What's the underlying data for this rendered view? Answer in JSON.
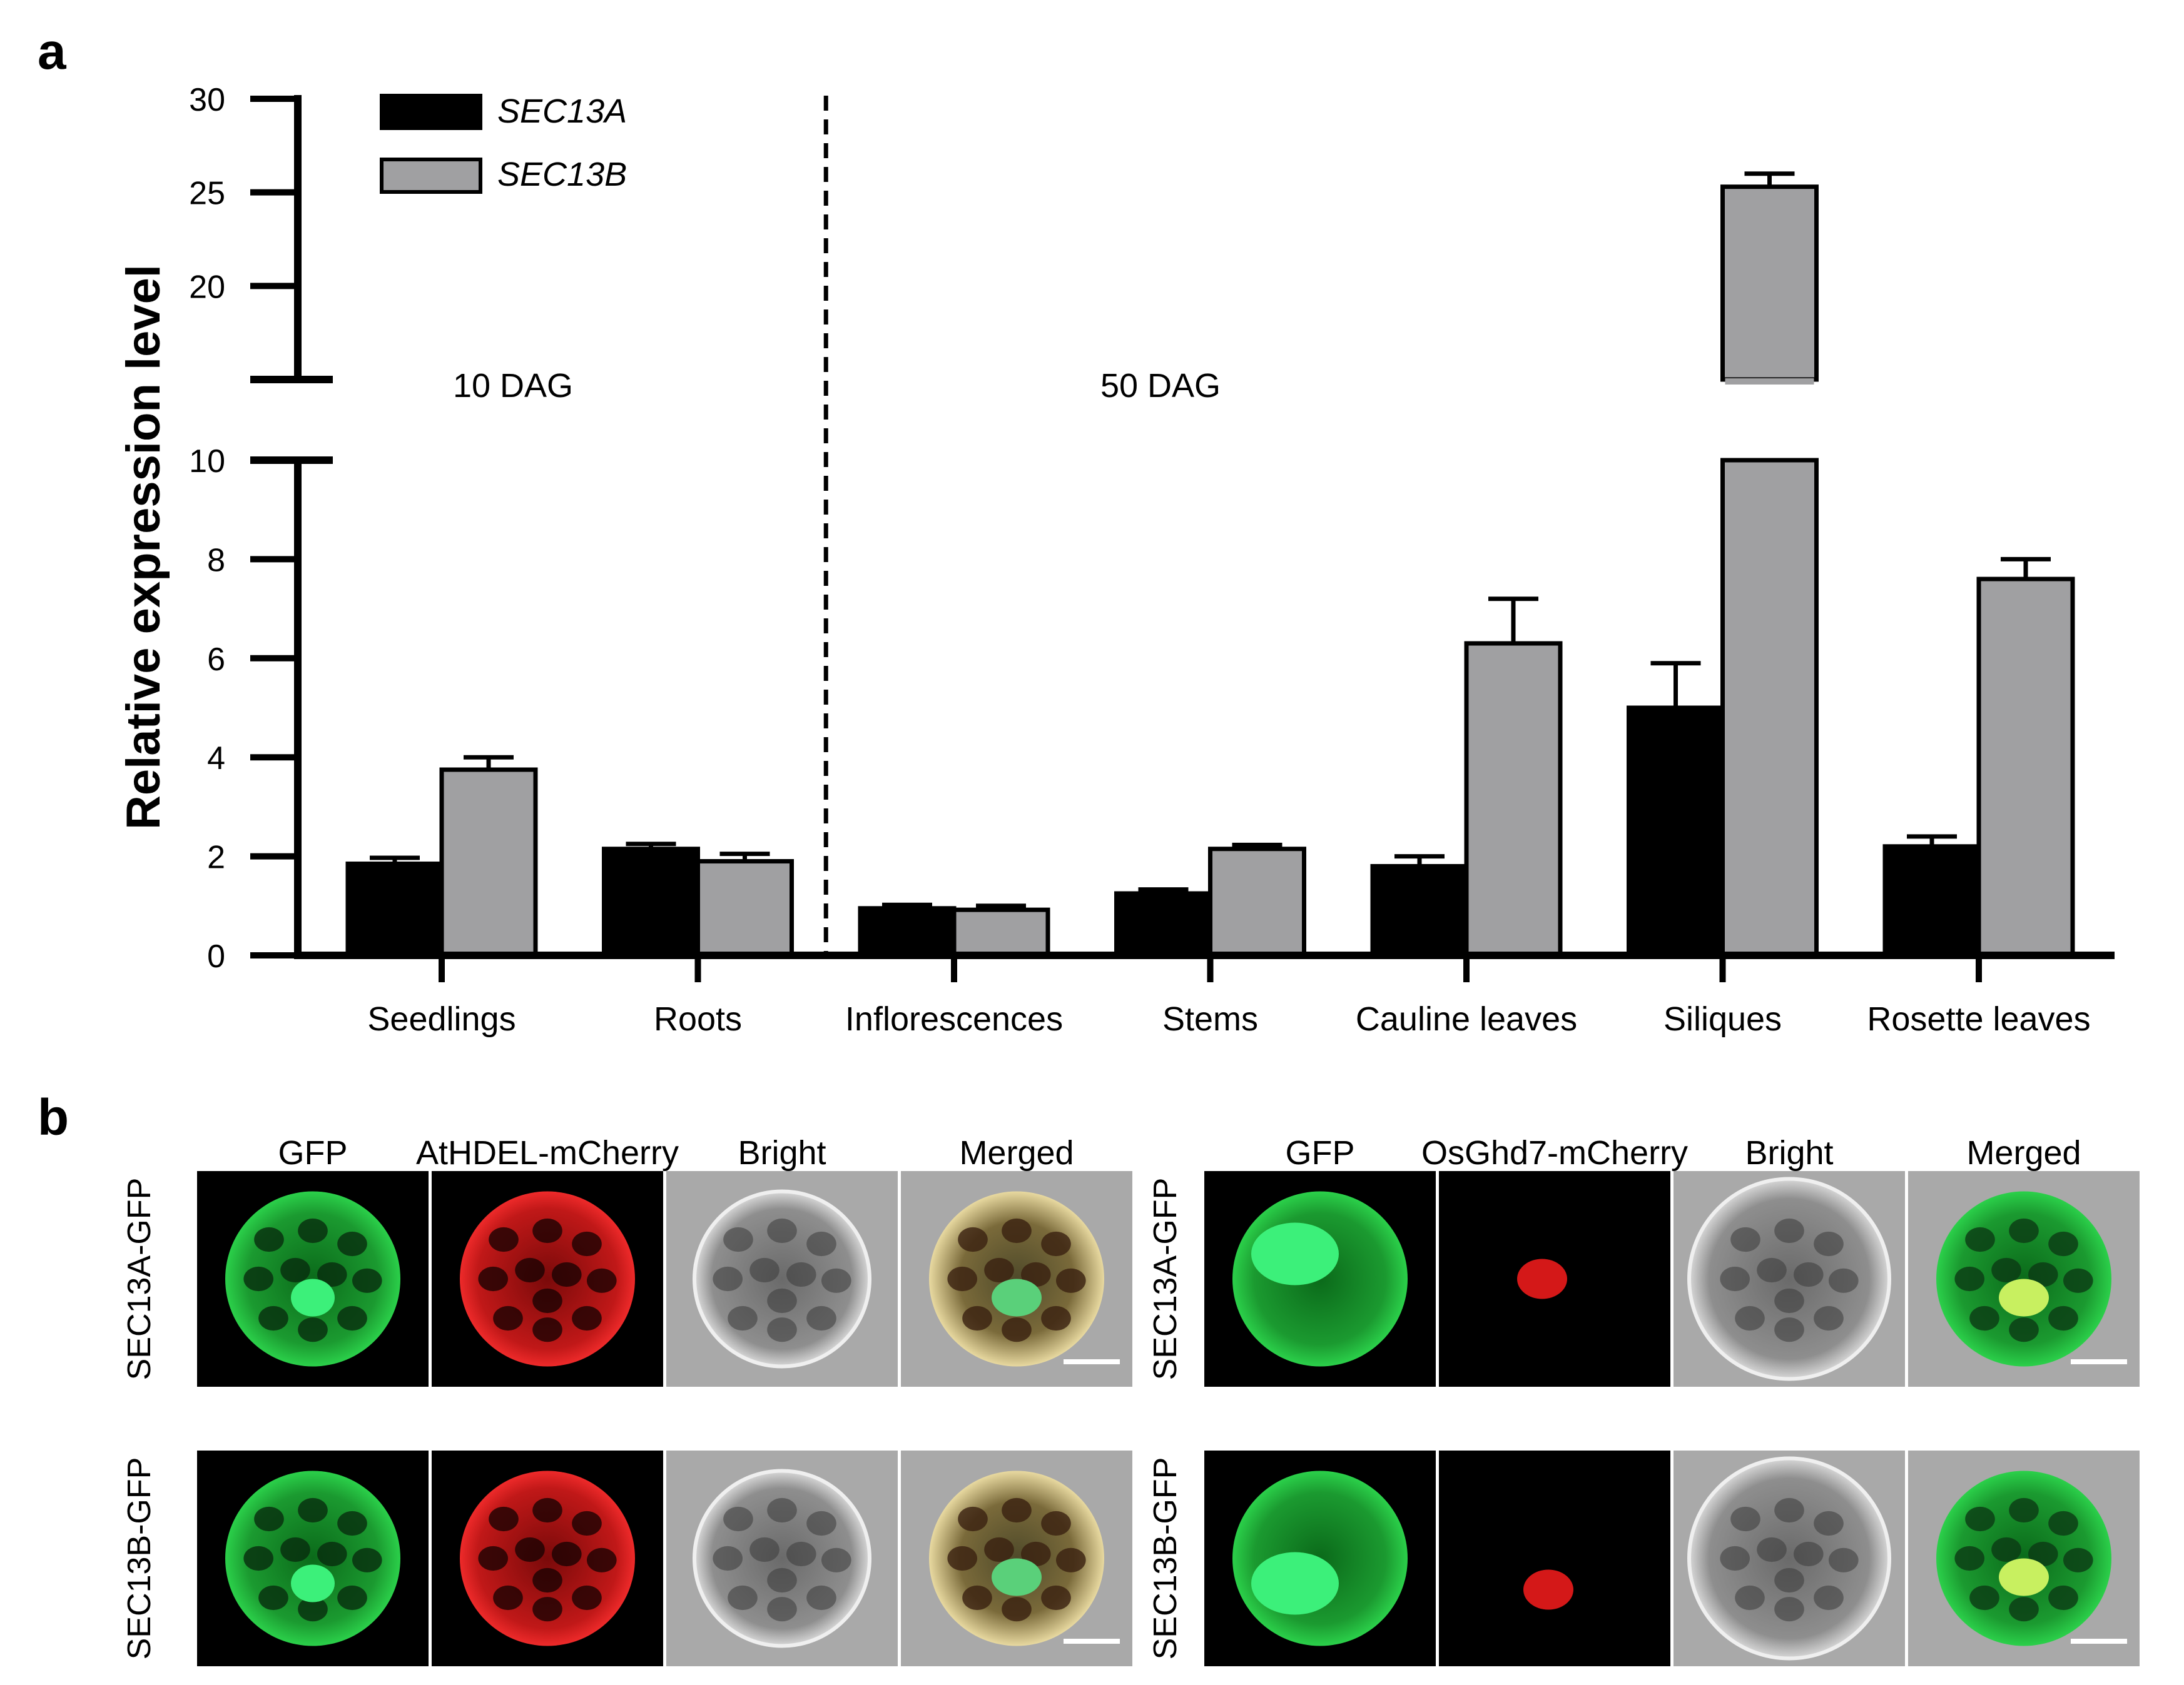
{
  "panel_a": {
    "label": "a",
    "period_labels": [
      "10 DAG",
      "50 DAG"
    ]
  },
  "panel_b": {
    "label": "b",
    "left_group": {
      "columns": [
        "GFP",
        "AtHDEL-mCherry",
        "Bright",
        "Merged"
      ],
      "rows": [
        "SEC13A-GFP",
        "SEC13B-GFP"
      ]
    },
    "right_group": {
      "columns": [
        "GFP",
        "OsGhd7-mCherry",
        "Bright",
        "Merged"
      ],
      "rows": [
        "SEC13A-GFP",
        "SEC13B-GFP"
      ]
    }
  },
  "chart_data": {
    "type": "bar",
    "ylabel": "Relative expression level",
    "categories": [
      "Seedlings",
      "Roots",
      "Inflorescences",
      "Stems",
      "Cauline leaves",
      "Siliques",
      "Rosette leaves"
    ],
    "series": [
      {
        "name": "SEC13A",
        "color": "#000000",
        "values": [
          1.85,
          2.15,
          0.95,
          1.25,
          1.8,
          5.0,
          2.2
        ],
        "errors": [
          0.12,
          0.1,
          0.07,
          0.08,
          0.2,
          0.9,
          0.2
        ]
      },
      {
        "name": "SEC13B",
        "color": "#a0a0a2",
        "values": [
          3.75,
          1.9,
          0.92,
          2.15,
          6.3,
          25.3,
          7.6
        ],
        "errors": [
          0.25,
          0.15,
          0.08,
          0.08,
          0.9,
          0.7,
          0.4
        ]
      }
    ],
    "y_axis_lower": {
      "range": [
        0,
        10
      ],
      "ticks": [
        0,
        2,
        4,
        6,
        8,
        10
      ]
    },
    "y_axis_upper": {
      "range": [
        15,
        30
      ],
      "ticks": [
        20,
        25,
        30
      ]
    },
    "y_axis_break": [
      10,
      15
    ],
    "divider_after_category": "Roots",
    "legend_placement": "top-left",
    "grid": false
  }
}
